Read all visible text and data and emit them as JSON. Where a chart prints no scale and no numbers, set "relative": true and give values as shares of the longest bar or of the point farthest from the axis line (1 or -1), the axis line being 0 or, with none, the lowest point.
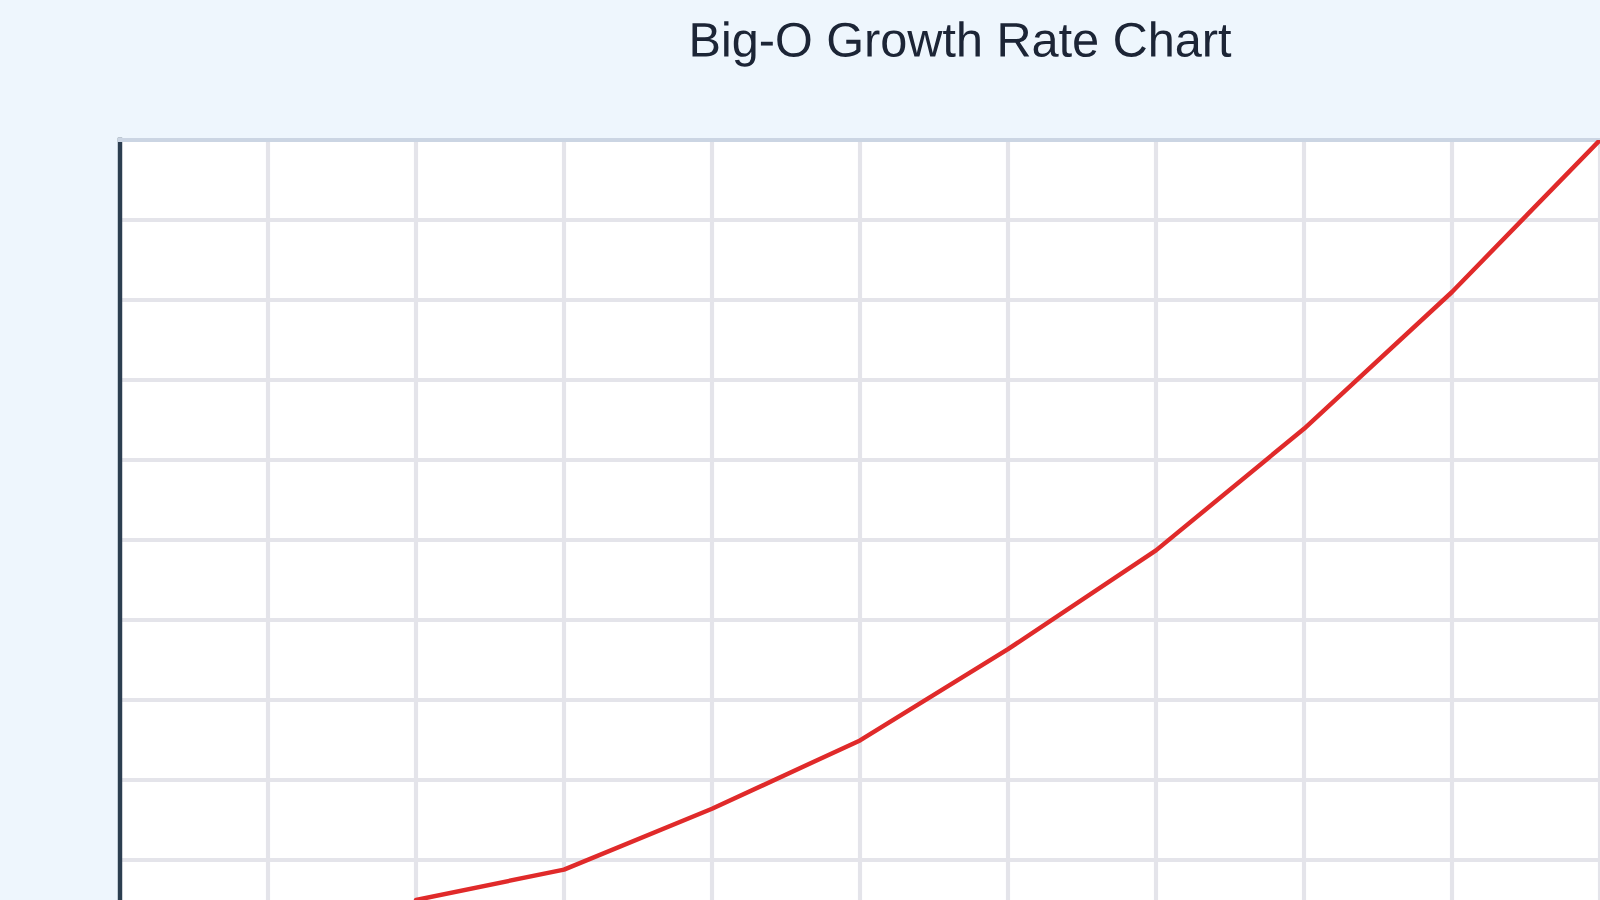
{
  "chart_data": {
    "type": "line",
    "title": "Big-O Growth Rate Chart",
    "categories": [
      null,
      null,
      null,
      null,
      null,
      null,
      null,
      null,
      null,
      null,
      null
    ],
    "values": [
      null,
      null,
      0,
      0.04,
      0.12,
      0.21,
      0.33,
      0.46,
      0.62,
      0.8,
      1
    ],
    "color": "#e02a2a",
    "relative": true,
    "grid": true
  }
}
